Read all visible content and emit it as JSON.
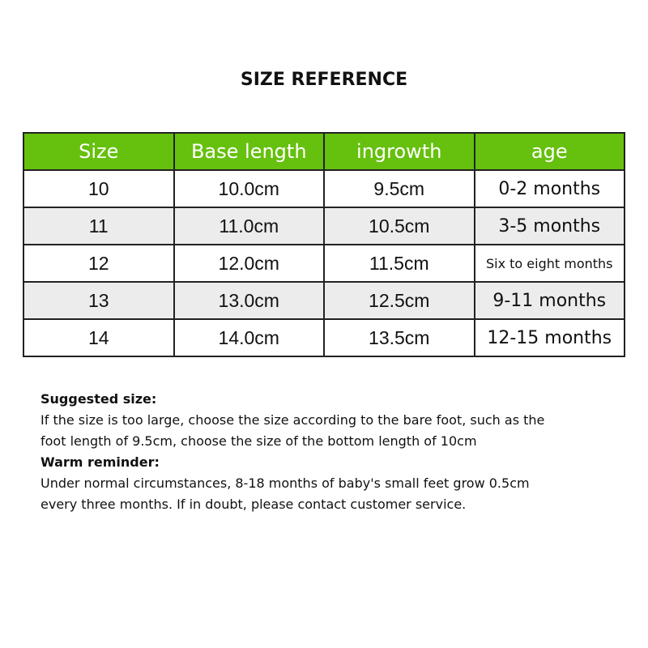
{
  "title": "SIZE REFERENCE",
  "headers": [
    "Size",
    "Base length",
    "ingrowth",
    "age"
  ],
  "rows": [
    [
      "10",
      "10.0cm",
      "9.5cm",
      "0-2 months"
    ],
    [
      "11",
      "11.0cm",
      "10.5cm",
      "3-5 months"
    ],
    [
      "12",
      "12.0cm",
      "11.5cm",
      "Six to eight months"
    ],
    [
      "13",
      "13.0cm",
      "12.5cm",
      "9-11 months"
    ],
    [
      "14",
      "14.0cm",
      "13.5cm",
      "12-15 months"
    ]
  ],
  "notes": {
    "suggested_heading": "Suggested size:",
    "suggested_text": "If the size is too large, choose the size according to the bare foot, such as the foot length of 9.5cm, choose the size of the bottom length of 10cm",
    "reminder_heading": "Warm reminder:",
    "reminder_text": "Under normal circumstances, 8-18 months of baby's small feet grow 0.5cm every three months. If in doubt, please contact customer service."
  },
  "colors": {
    "header": "#66c00e",
    "alt_row": "#ececec"
  }
}
